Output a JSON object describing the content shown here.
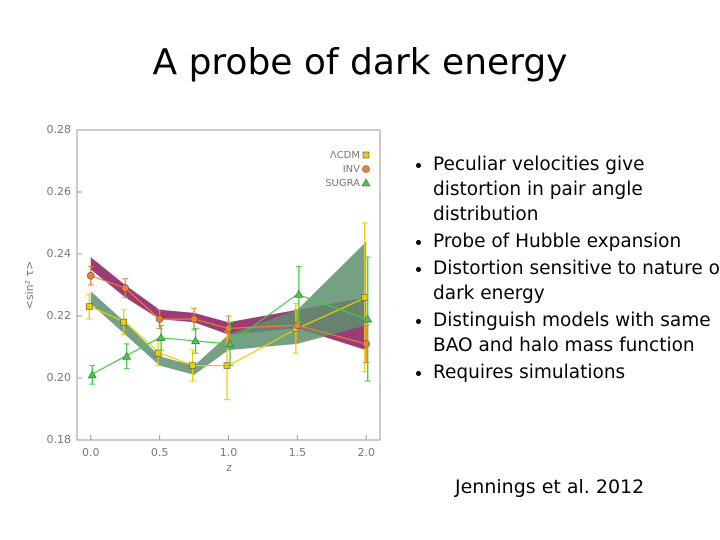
{
  "title": "A probe of dark energy",
  "bullets": [
    "Peculiar velocities give distortion in pair angle distribution",
    "Probe of Hubble expansion",
    "Distortion sensitive to nature of dark energy",
    "Distinguish models with same BAO and halo mass function",
    "Requires simulations"
  ],
  "citation": "Jennings et al. 2012",
  "chart_data": {
    "type": "errorbar",
    "x_label": "z",
    "y_label": "<sin² τ>",
    "x": [
      0,
      0.25,
      0.5,
      0.75,
      1.0,
      1.5,
      2.0
    ],
    "xlim": [
      -0.1,
      2.1
    ],
    "xticks": [
      {
        "value": 0,
        "label": "0.0"
      },
      {
        "value": 0.5,
        "label": "0.5"
      },
      {
        "value": 1.0,
        "label": "1.0"
      },
      {
        "value": 1.5,
        "label": "1.5"
      },
      {
        "value": 2.0,
        "label": "2.0"
      }
    ],
    "ylim": [
      0.18,
      0.28
    ],
    "yticks": [
      {
        "value": 0.18,
        "label": "0.18"
      },
      {
        "value": 0.2,
        "label": "0.20"
      },
      {
        "value": 0.22,
        "label": "0.22"
      },
      {
        "value": 0.24,
        "label": "0.24"
      },
      {
        "value": 0.26,
        "label": "0.26"
      },
      {
        "value": 0.28,
        "label": "0.28"
      }
    ],
    "legend": "upper right",
    "bands": [
      {
        "color": "#8b1a5e",
        "lower": [
          0.235,
          0.226,
          0.219,
          0.218,
          0.214,
          0.216,
          0.209
        ],
        "upper": [
          0.239,
          0.23,
          0.222,
          0.221,
          0.218,
          0.222,
          0.226
        ]
      },
      {
        "color": "#5e8f6e",
        "lower": [
          0.224,
          0.214,
          0.204,
          0.201,
          0.209,
          0.211,
          0.217
        ],
        "upper": [
          0.228,
          0.218,
          0.207,
          0.204,
          0.214,
          0.222,
          0.244
        ]
      }
    ],
    "series": [
      {
        "name": "ΛCDM",
        "color": "#e8d000",
        "marker": "square",
        "values": [
          0.223,
          0.218,
          0.208,
          0.204,
          0.204,
          0.216,
          0.226
        ],
        "errors": [
          0.004,
          0.004,
          0.004,
          0.005,
          0.011,
          0.008,
          0.024
        ]
      },
      {
        "name": "INV",
        "color": "#f07f30",
        "marker": "circle",
        "values": [
          0.233,
          0.229,
          0.219,
          0.219,
          0.216,
          0.217,
          0.211
        ],
        "errors": [
          0.003,
          0.003,
          0.003,
          0.0035,
          0.004,
          0.005,
          0.006
        ]
      },
      {
        "name": "SUGRA",
        "color": "#3fcf3f",
        "marker": "triangle",
        "values": [
          0.201,
          0.207,
          0.213,
          0.212,
          0.211,
          0.227,
          0.219
        ],
        "errors": [
          0.003,
          0.004,
          0.004,
          0.004,
          0.007,
          0.009,
          0.02
        ]
      }
    ]
  }
}
